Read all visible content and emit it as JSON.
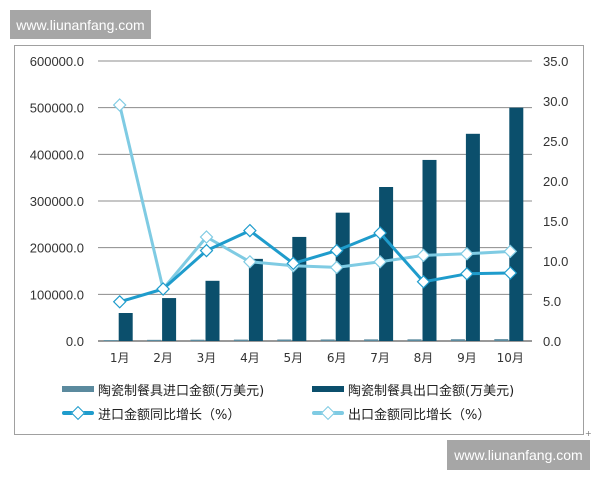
{
  "watermark": {
    "top_text": "www.liunanfang.com",
    "bottom_text": "www.liunanfang.com"
  },
  "colors": {
    "import_amount": "#5b8a9e",
    "export_amount": "#0b4f6c",
    "import_growth": "#1f9ccc",
    "export_growth": "#7fcbe3",
    "grid": "#8c8c8c",
    "axis_text": "#333333"
  },
  "chart_data": {
    "type": "bar+line",
    "title": "",
    "categories": [
      "1月",
      "2月",
      "3月",
      "4月",
      "5月",
      "6月",
      "7月",
      "8月",
      "9月",
      "10月"
    ],
    "y_left": {
      "range": [
        0,
        600000
      ],
      "ticks": [
        "0.0",
        "100000.0",
        "200000.0",
        "300000.0",
        "400000.0",
        "500000.0",
        "600000.0"
      ],
      "label": ""
    },
    "y_right": {
      "range": [
        0,
        35
      ],
      "ticks": [
        "0.0",
        "5.0",
        "10.0",
        "15.0",
        "20.0",
        "25.0",
        "30.0",
        "35.0"
      ],
      "label": ""
    },
    "grid": true,
    "legend_position": "bottom",
    "series": [
      {
        "name": "陶瓷制餐具进口金额(万美元)",
        "type": "bar",
        "axis": "left",
        "values": [
          2000,
          2500,
          2800,
          3000,
          3200,
          3300,
          3500,
          3600,
          3800,
          4000
        ]
      },
      {
        "name": "陶瓷制餐具出口金额(万美元)",
        "type": "bar",
        "axis": "left",
        "values": [
          60000,
          92000,
          129000,
          176000,
          223000,
          275000,
          330000,
          388000,
          444000,
          500000
        ]
      },
      {
        "name": "进口金额同比增长（%）",
        "type": "line",
        "axis": "right",
        "values": [
          4.9,
          6.5,
          11.3,
          13.8,
          9.7,
          11.3,
          13.5,
          7.4,
          8.4,
          8.5
        ]
      },
      {
        "name": "出口金额同比增长（%）",
        "type": "line",
        "axis": "right",
        "values": [
          29.5,
          6.5,
          13.0,
          9.9,
          9.4,
          9.2,
          9.9,
          10.7,
          10.9,
          11.2
        ]
      }
    ]
  },
  "legend": {
    "items": [
      {
        "label": "陶瓷制餐具进口金额(万美元)",
        "kind": "bar",
        "color": "#5b8a9e"
      },
      {
        "label": "陶瓷制餐具出口金额(万美元)",
        "kind": "bar",
        "color": "#0b4f6c"
      },
      {
        "label": "进口金额同比增长（%）",
        "kind": "line",
        "color": "#1f9ccc"
      },
      {
        "label": "出口金额同比增长（%）",
        "kind": "line",
        "color": "#7fcbe3"
      }
    ]
  }
}
